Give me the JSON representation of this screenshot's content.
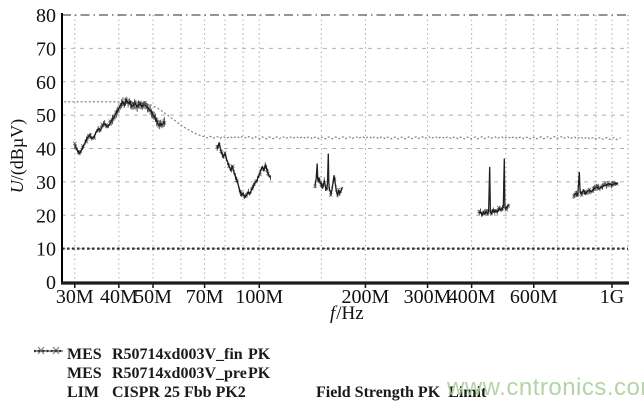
{
  "watermark": {
    "text": "www.cntronics.com",
    "color": "#a7cd98"
  },
  "axes": {
    "ylabel_var": "U",
    "ylabel_unit": "/(dBµV)",
    "xlabel_var": "f",
    "xlabel_unit": "/Hz"
  },
  "legend": {
    "rows": [
      {
        "sample": "x-markers",
        "label": "MES",
        "name": "R50714xd003V_fin",
        "detector": "PK"
      },
      {
        "sample": "solid-line",
        "label": "MES",
        "name": "R50714xd003V_pre",
        "detector": "PK"
      },
      {
        "sample": "dotted-line",
        "label": "LIM",
        "name": "CISPR 25 Fbb PK2",
        "detector": "Field Strength PK  Limit"
      }
    ]
  },
  "chart_data": {
    "type": "line",
    "title": "",
    "xlabel": "f/Hz",
    "ylabel": "U/(dBµV)",
    "x_scale": "log",
    "ylim": [
      0,
      80
    ],
    "xlim_MHz": [
      28,
      1100
    ],
    "grid": true,
    "legend_position": "bottom-left",
    "y_ticks": [
      0,
      10,
      20,
      30,
      40,
      50,
      60,
      70,
      80
    ],
    "x_ticks": [
      {
        "label": "30M",
        "MHz": 30
      },
      {
        "label": "40M",
        "MHz": 40
      },
      {
        "label": "50M",
        "MHz": 50
      },
      {
        "label": "70M",
        "MHz": 70
      },
      {
        "label": "100M",
        "MHz": 100
      },
      {
        "label": "200M",
        "MHz": 200
      },
      {
        "label": "300M",
        "MHz": 300
      },
      {
        "label": "400M",
        "MHz": 400
      },
      {
        "label": "600M",
        "MHz": 600
      },
      {
        "label": "1G",
        "MHz": 1000
      }
    ],
    "x_grid_MHz": [
      30,
      40,
      50,
      60,
      70,
      80,
      90,
      100,
      150,
      200,
      300,
      400,
      500,
      600,
      700,
      800,
      900,
      1000
    ],
    "series": [
      {
        "name": "MES R50714xd003V_fin PK",
        "type": "scatter-noisy",
        "color": "#161616",
        "bands": [
          [
            [
              30,
              41
            ],
            [
              30.5,
              39.5
            ],
            [
              31,
              38.5
            ],
            [
              31.5,
              40
            ],
            [
              32,
              41.5
            ],
            [
              32.5,
              43
            ],
            [
              33,
              44
            ],
            [
              33.5,
              43
            ],
            [
              34,
              43.5
            ],
            [
              34.5,
              45
            ],
            [
              35,
              46
            ],
            [
              35.5,
              45.5
            ],
            [
              36,
              47
            ],
            [
              36.5,
              47.5
            ],
            [
              37,
              46.5
            ],
            [
              37.5,
              47
            ],
            [
              38,
              48
            ],
            [
              38.5,
              49
            ],
            [
              39,
              50
            ],
            [
              39.5,
              51
            ],
            [
              40,
              52
            ],
            [
              40.5,
              53
            ],
            [
              41,
              54
            ],
            [
              41.5,
              53
            ],
            [
              42,
              54.5
            ],
            [
              42.5,
              53.5
            ],
            [
              43,
              54
            ],
            [
              43.5,
              52.5
            ],
            [
              44,
              53
            ],
            [
              44.5,
              53.5
            ],
            [
              45,
              52.5
            ],
            [
              45.5,
              53
            ],
            [
              46,
              53.5
            ],
            [
              46.5,
              52.5
            ],
            [
              47,
              53
            ],
            [
              47.5,
              53
            ],
            [
              48,
              52.5
            ],
            [
              48.5,
              52
            ],
            [
              49,
              51.5
            ],
            [
              49.5,
              51
            ],
            [
              50,
              50
            ],
            [
              50.5,
              49.5
            ],
            [
              51,
              48.5
            ],
            [
              51.5,
              47.5
            ],
            [
              52,
              47
            ],
            [
              52.5,
              47.5
            ],
            [
              53,
              47
            ],
            [
              53.5,
              47.5
            ],
            [
              54,
              48
            ]
          ],
          [
            [
              76,
              40
            ],
            [
              77,
              41.5
            ],
            [
              78,
              39
            ],
            [
              79,
              37.5
            ],
            [
              80,
              38.5
            ],
            [
              81,
              36.5
            ],
            [
              82,
              35
            ],
            [
              83,
              33.5
            ],
            [
              84,
              34.5
            ],
            [
              85,
              32.5
            ],
            [
              86,
              31
            ],
            [
              87,
              29.5
            ],
            [
              88,
              27.5
            ],
            [
              89,
              26
            ],
            [
              90,
              26.5
            ],
            [
              91,
              25.5
            ],
            [
              92,
              26
            ],
            [
              93,
              27
            ],
            [
              94,
              26.5
            ],
            [
              95,
              27.5
            ],
            [
              96,
              28.5
            ],
            [
              97,
              29.5
            ],
            [
              98,
              30
            ],
            [
              99,
              31
            ],
            [
              100,
              32
            ],
            [
              101,
              33.5
            ],
            [
              102,
              34.5
            ],
            [
              103,
              33.5
            ],
            [
              104,
              35
            ],
            [
              105,
              34
            ],
            [
              106,
              32.5
            ],
            [
              107,
              31.5
            ],
            [
              108,
              31.5
            ]
          ],
          [
            [
              144,
              29
            ],
            [
              145,
              31
            ],
            [
              146,
              35.5
            ],
            [
              146.5,
              31
            ],
            [
              147,
              30
            ],
            [
              148,
              31
            ],
            [
              149,
              29.5
            ],
            [
              150,
              29.5
            ],
            [
              151,
              28
            ],
            [
              152,
              29
            ],
            [
              153,
              30.5
            ],
            [
              154,
              28.5
            ],
            [
              155,
              27.5
            ],
            [
              156,
              29
            ],
            [
              157,
              38.5
            ],
            [
              157.5,
              30
            ],
            [
              158,
              28
            ],
            [
              159,
              27
            ],
            [
              160,
              26.5
            ],
            [
              161,
              28
            ],
            [
              162,
              30
            ],
            [
              163,
              32
            ],
            [
              164,
              30
            ],
            [
              165,
              28
            ],
            [
              166,
              26.5
            ],
            [
              167,
              26
            ],
            [
              168,
              27.5
            ],
            [
              169,
              26.5
            ],
            [
              170,
              27
            ],
            [
              171,
              27.5
            ],
            [
              172,
              28.5
            ]
          ],
          [
            [
              420,
              20.5
            ],
            [
              424,
              21
            ],
            [
              428,
              20
            ],
            [
              432,
              21
            ],
            [
              436,
              20.5
            ],
            [
              440,
              21
            ],
            [
              444,
              20.5
            ],
            [
              447,
              21
            ],
            [
              450,
              34.5
            ],
            [
              452,
              21
            ],
            [
              456,
              20.5
            ],
            [
              460,
              21.5
            ],
            [
              464,
              21
            ],
            [
              468,
              21.5
            ],
            [
              472,
              21
            ],
            [
              476,
              21.5
            ],
            [
              480,
              22
            ],
            [
              484,
              21.5
            ],
            [
              488,
              22
            ],
            [
              492,
              22.5
            ],
            [
              495,
              37
            ],
            [
              497,
              22.5
            ],
            [
              500,
              22
            ],
            [
              504,
              22.5
            ],
            [
              508,
              23
            ],
            [
              512,
              23
            ]
          ],
          [
            [
              780,
              26
            ],
            [
              790,
              26.5
            ],
            [
              800,
              26
            ],
            [
              808,
              33
            ],
            [
              812,
              27
            ],
            [
              820,
              26.5
            ],
            [
              830,
              27.5
            ],
            [
              840,
              26.5
            ],
            [
              850,
              27
            ],
            [
              860,
              27.5
            ],
            [
              875,
              27
            ],
            [
              890,
              28
            ],
            [
              905,
              28.5
            ],
            [
              920,
              28
            ],
            [
              935,
              28.5
            ],
            [
              950,
              29
            ],
            [
              965,
              29
            ],
            [
              980,
              29.5
            ],
            [
              1000,
              29
            ],
            [
              1020,
              29.5
            ],
            [
              1040,
              29.5
            ]
          ]
        ]
      },
      {
        "name": "MES R50714xd003V_pre PK",
        "type": "line",
        "color": "#787878",
        "points": [
          [
            28,
            54
          ],
          [
            44,
            54
          ],
          [
            46,
            53.8
          ],
          [
            48,
            53.4
          ],
          [
            50,
            52.8
          ],
          [
            52,
            51.8
          ],
          [
            54,
            50.6
          ],
          [
            56,
            49.4
          ],
          [
            58,
            48.2
          ],
          [
            60,
            47
          ],
          [
            62,
            46
          ],
          [
            64,
            45.2
          ],
          [
            66,
            44.5
          ],
          [
            68,
            43.9
          ],
          [
            70,
            43.5
          ],
          [
            80,
            43.3
          ],
          [
            90,
            43.4
          ],
          [
            100,
            43.2
          ],
          [
            120,
            43.3
          ],
          [
            150,
            43.2
          ],
          [
            200,
            43.3
          ],
          [
            250,
            43.2
          ],
          [
            300,
            43.3
          ],
          [
            400,
            43.2
          ],
          [
            500,
            43.3
          ],
          [
            600,
            43.2
          ],
          [
            700,
            43.3
          ],
          [
            800,
            43.2
          ],
          [
            900,
            43.1
          ],
          [
            1000,
            43
          ],
          [
            1060,
            42.9
          ]
        ]
      },
      {
        "name": "LIM CISPR 25 Fbb PK2 Field Strength PK Limit",
        "type": "dotted-limit",
        "color": "#333333",
        "points": [
          [
            28,
            10
          ],
          [
            1060,
            10
          ]
        ]
      }
    ]
  }
}
